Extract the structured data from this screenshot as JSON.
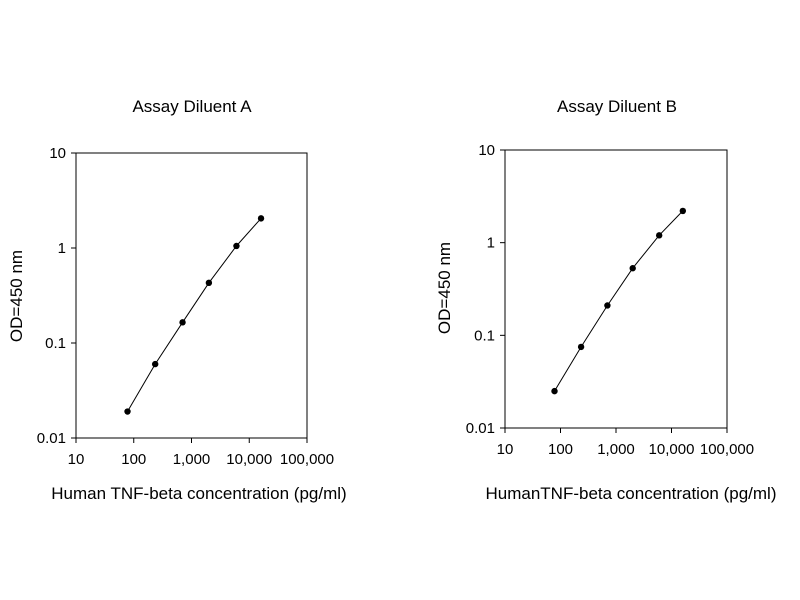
{
  "chart_data": [
    {
      "type": "line",
      "title": "Assay Diluent A",
      "xlabel": "Human TNF-beta concentration (pg/ml)",
      "ylabel": "OD=450 nm",
      "x_scale": "log",
      "y_scale": "log",
      "xlim": [
        10,
        100000
      ],
      "ylim": [
        0.01,
        10
      ],
      "x_ticks": [
        10,
        100,
        1000,
        10000,
        100000
      ],
      "x_tick_labels": [
        "10",
        "100",
        "1,000",
        "10,000",
        "100,000"
      ],
      "y_ticks": [
        0.01,
        0.1,
        1,
        10
      ],
      "y_tick_labels": [
        "0.01",
        "0.1",
        "1",
        "10"
      ],
      "grid": false,
      "series": [
        {
          "x": [
            78,
            235,
            700,
            2000,
            6000,
            16000
          ],
          "y": [
            0.019,
            0.06,
            0.165,
            0.43,
            1.05,
            2.05
          ]
        }
      ]
    },
    {
      "type": "line",
      "title": "Assay Diluent B",
      "xlabel": "HumanTNF-beta concentration (pg/ml)",
      "ylabel": "OD=450 nm",
      "x_scale": "log",
      "y_scale": "log",
      "xlim": [
        10,
        100000
      ],
      "ylim": [
        0.01,
        10
      ],
      "x_ticks": [
        10,
        100,
        1000,
        10000,
        100000
      ],
      "x_tick_labels": [
        "10",
        "100",
        "1,000",
        "10,000",
        "100,000"
      ],
      "y_ticks": [
        0.01,
        0.1,
        1,
        10
      ],
      "y_tick_labels": [
        "0.01",
        "0.1",
        "1",
        "10"
      ],
      "grid": false,
      "series": [
        {
          "x": [
            78,
            235,
            700,
            2000,
            6000,
            16000
          ],
          "y": [
            0.025,
            0.075,
            0.21,
            0.53,
            1.2,
            2.2
          ]
        }
      ]
    }
  ]
}
